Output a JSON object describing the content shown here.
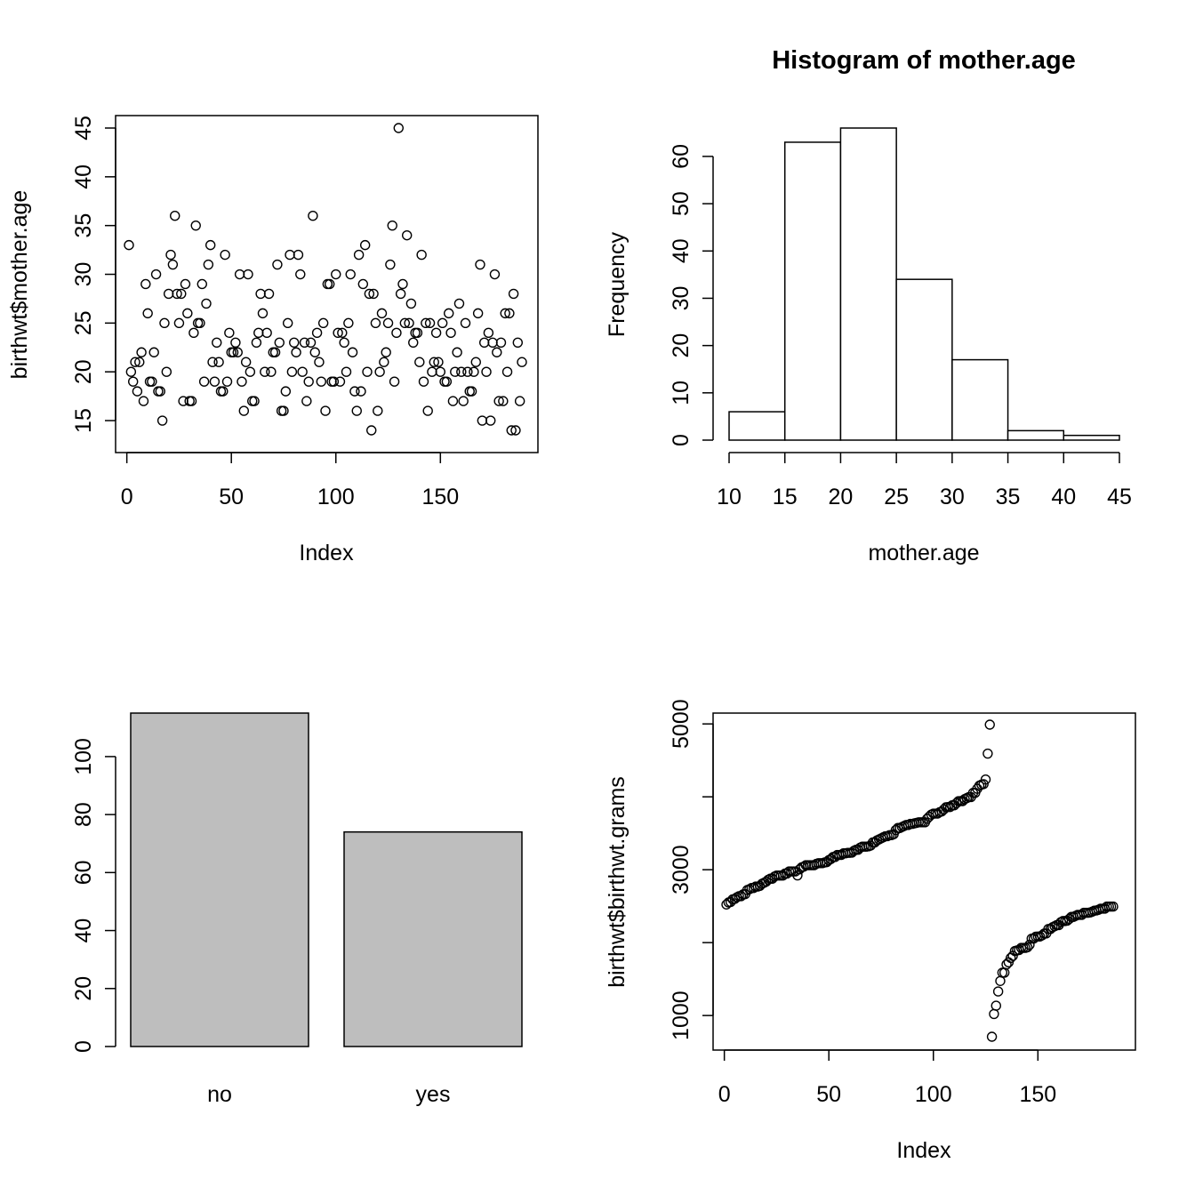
{
  "chart_data": [
    {
      "type": "scatter",
      "title": "",
      "xlabel": "Index",
      "ylabel": "birthwt$mother.age",
      "xlim": [
        1,
        189
      ],
      "ylim": [
        14,
        45
      ],
      "x_ticks": [
        "0",
        "50",
        "100",
        "150"
      ],
      "y_ticks": [
        "15",
        "20",
        "25",
        "30",
        "35",
        "40",
        "45"
      ],
      "y": [
        33,
        20,
        19,
        21,
        18,
        21,
        22,
        17,
        29,
        26,
        19,
        19,
        22,
        30,
        18,
        18,
        15,
        25,
        20,
        28,
        32,
        31,
        36,
        28,
        25,
        28,
        17,
        29,
        26,
        17,
        17,
        24,
        35,
        25,
        25,
        29,
        19,
        27,
        31,
        33,
        21,
        19,
        23,
        21,
        18,
        18,
        32,
        19,
        24,
        22,
        22,
        23,
        22,
        30,
        19,
        16,
        21,
        30,
        20,
        17,
        17,
        23,
        24,
        28,
        26,
        20,
        24,
        28,
        20,
        22,
        22,
        31,
        23,
        16,
        16,
        18,
        25,
        32,
        20,
        23,
        22,
        32,
        30,
        20,
        23,
        17,
        19,
        23,
        36,
        22,
        24,
        21,
        19,
        25,
        16,
        29,
        29,
        19,
        19,
        30,
        24,
        19,
        24,
        23,
        20,
        25,
        30,
        22,
        18,
        16,
        32,
        18,
        29,
        33,
        20,
        28,
        14,
        28,
        25,
        16,
        20,
        26,
        21,
        22,
        25,
        31,
        35,
        19,
        24,
        45,
        28,
        29,
        25,
        34,
        25,
        27,
        23,
        24,
        24,
        21,
        32,
        19,
        25,
        16,
        25,
        20,
        21,
        24,
        21,
        20,
        25,
        19,
        19,
        26,
        24,
        17,
        20,
        22,
        27,
        20,
        17,
        25,
        20,
        18,
        18,
        20,
        21,
        26,
        31,
        15,
        23,
        20,
        24,
        15,
        23,
        30,
        22,
        17,
        23,
        17,
        26,
        20,
        26,
        14,
        28,
        14,
        23,
        17,
        21
      ]
    },
    {
      "type": "bar",
      "subtype": "histogram",
      "title": "Histogram of mother.age",
      "xlabel": "mother.age",
      "ylabel": "Frequency",
      "bin_edges": [
        10,
        15,
        20,
        25,
        30,
        35,
        40,
        45
      ],
      "values": [
        6,
        63,
        66,
        34,
        17,
        2,
        1
      ],
      "x_ticks": [
        "10",
        "15",
        "20",
        "25",
        "30",
        "35",
        "40",
        "45"
      ],
      "y_ticks": [
        "0",
        "10",
        "20",
        "30",
        "40",
        "50",
        "60"
      ],
      "ylim": [
        0,
        66
      ]
    },
    {
      "type": "bar",
      "title": "",
      "xlabel": "",
      "ylabel": "",
      "categories": [
        "no",
        "yes"
      ],
      "values": [
        115,
        74
      ],
      "y_ticks": [
        "0",
        "20",
        "40",
        "60",
        "80",
        "100"
      ],
      "ylim": [
        0,
        115
      ],
      "bar_color": "#bebebe"
    },
    {
      "type": "scatter",
      "title": "",
      "xlabel": "Index",
      "ylabel": "birthwt$birthwt.grams",
      "xlim": [
        1,
        189
      ],
      "ylim": [
        709,
        4990
      ],
      "x_ticks": [
        "0",
        "50",
        "100",
        "150"
      ],
      "y_ticks": [
        "1000",
        "3000",
        "5000"
      ],
      "y": [
        2523,
        2551,
        2557,
        2594,
        2600,
        2622,
        2637,
        2637,
        2663,
        2665,
        2722,
        2733,
        2750,
        2750,
        2769,
        2769,
        2778,
        2807,
        2821,
        2836,
        2863,
        2877,
        2877,
        2906,
        2920,
        2920,
        2920,
        2920,
        2948,
        2948,
        2977,
        2977,
        2977,
        2977,
        2922,
        3005,
        3033,
        3042,
        3062,
        3062,
        3062,
        3062,
        3062,
        3080,
        3090,
        3090,
        3090,
        3100,
        3104,
        3132,
        3147,
        3175,
        3175,
        3203,
        3203,
        3203,
        3225,
        3225,
        3232,
        3232,
        3234,
        3260,
        3274,
        3274,
        3303,
        3317,
        3317,
        3317,
        3321,
        3331,
        3374,
        3374,
        3402,
        3416,
        3430,
        3444,
        3459,
        3460,
        3473,
        3475,
        3487,
        3544,
        3572,
        3572,
        3586,
        3600,
        3614,
        3614,
        3629,
        3629,
        3637,
        3643,
        3651,
        3651,
        3651,
        3651,
        3699,
        3728,
        3756,
        3770,
        3770,
        3770,
        3790,
        3799,
        3827,
        3856,
        3860,
        3860,
        3884,
        3884,
        3912,
        3940,
        3941,
        3941,
        3969,
        3983,
        3997,
        3997,
        4054,
        4054,
        4111,
        4153,
        4167,
        4174,
        4238,
        4593,
        4990,
        709,
        1021,
        1135,
        1330,
        1474,
        1588,
        1588,
        1701,
        1729,
        1790,
        1818,
        1885,
        1893,
        1899,
        1928,
        1928,
        1928,
        1936,
        1970,
        2055,
        2055,
        2082,
        2084,
        2084,
        2100,
        2125,
        2126,
        2187,
        2187,
        2211,
        2225,
        2240,
        2240,
        2282,
        2296,
        2296,
        2301,
        2325,
        2353,
        2353,
        2367,
        2381,
        2381,
        2381,
        2410,
        2410,
        2410,
        2414,
        2424,
        2438,
        2442,
        2450,
        2466,
        2466,
        2466,
        2495,
        2495,
        2495,
        2495
      ]
    }
  ]
}
